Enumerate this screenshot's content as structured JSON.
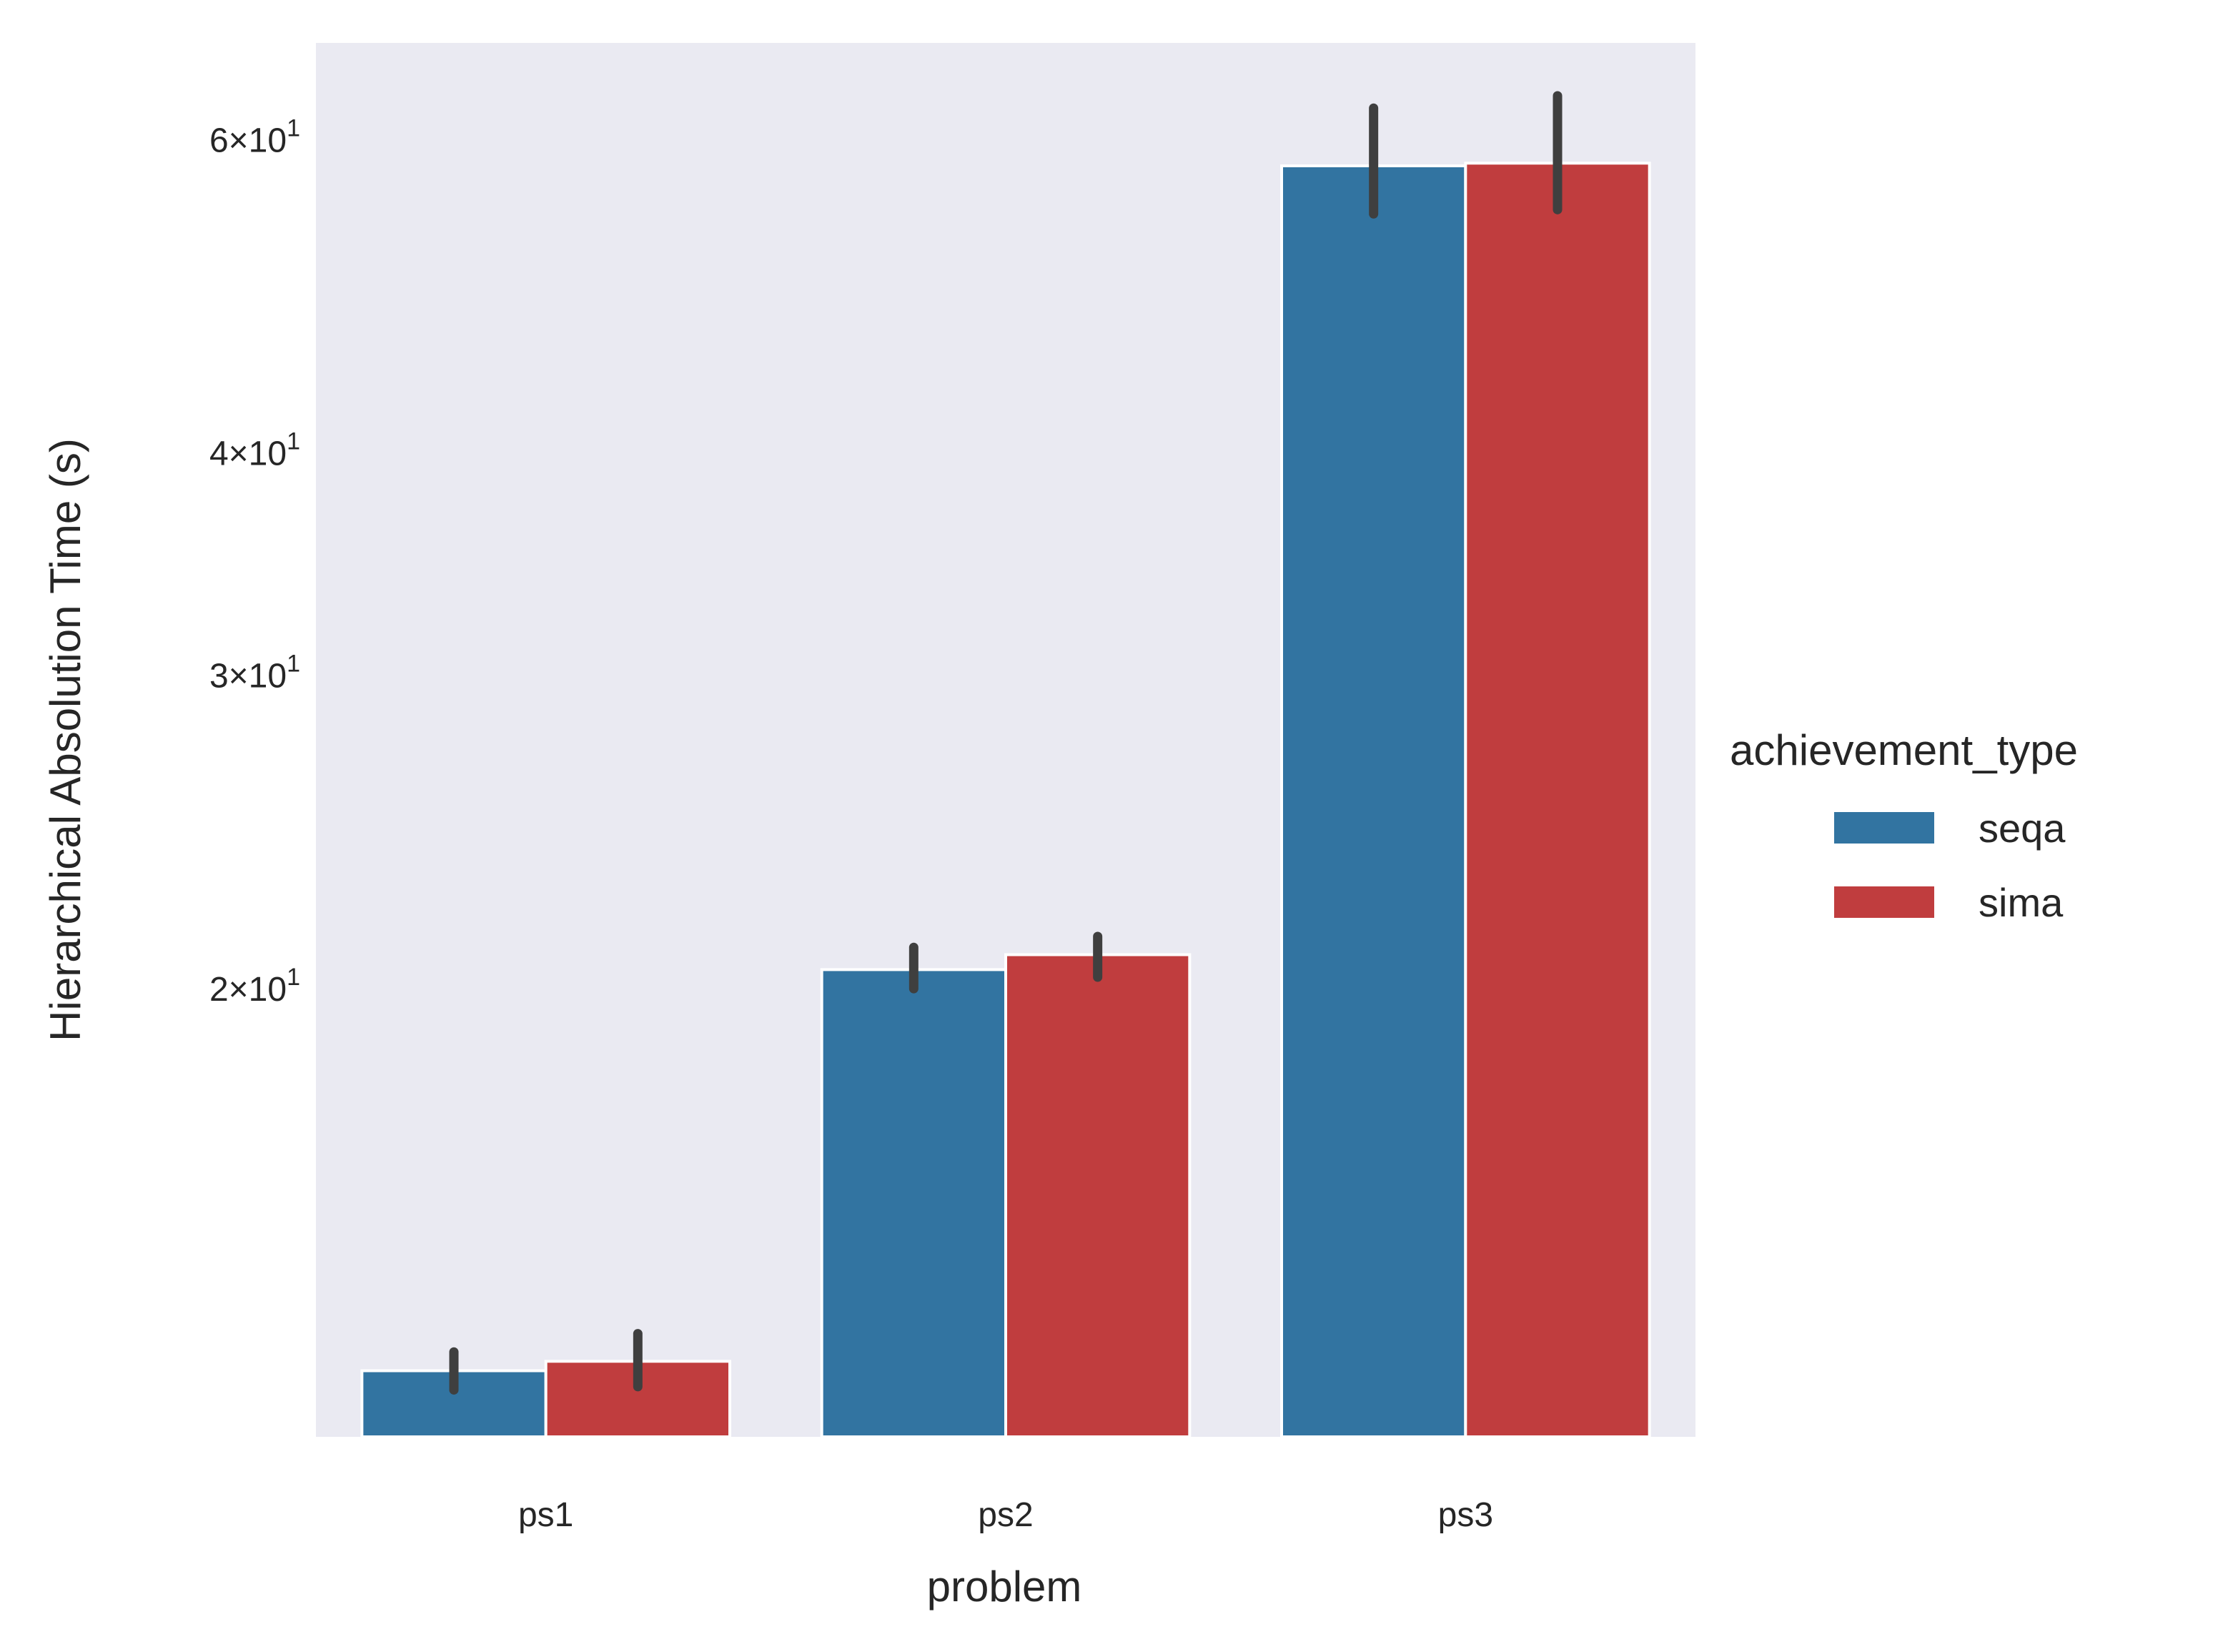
{
  "chart_data": {
    "type": "bar",
    "title": "",
    "xlabel": "problem",
    "ylabel": "Hierarchical Absolution Time (s)",
    "yscale": "log",
    "ylim": [
      11.2,
      68.0
    ],
    "yticks": [
      {
        "value": 20,
        "mantissa": "2",
        "base": "10",
        "exp": "1"
      },
      {
        "value": 30,
        "mantissa": "3",
        "base": "10",
        "exp": "1"
      },
      {
        "value": 40,
        "mantissa": "4",
        "base": "10",
        "exp": "1"
      },
      {
        "value": 60,
        "mantissa": "6",
        "base": "10",
        "exp": "1"
      }
    ],
    "grid": false,
    "background": "#eaeaf2",
    "categories": [
      "ps1",
      "ps2",
      "ps3"
    ],
    "legend": {
      "title": "achievement_type",
      "placement": "right"
    },
    "series": [
      {
        "name": "seqa",
        "color": "#3274a1",
        "values": [
          12.2,
          20.5,
          58.0
        ],
        "error_low": [
          11.9,
          20.0,
          54.5
        ],
        "error_high": [
          12.5,
          21.1,
          62.5
        ]
      },
      {
        "name": "sima",
        "color": "#c03d3e",
        "values": [
          12.35,
          20.9,
          58.2
        ],
        "error_low": [
          11.95,
          20.3,
          54.8
        ],
        "error_high": [
          12.8,
          21.4,
          63.5
        ]
      }
    ],
    "errorbar_color": "#3f3f3f"
  }
}
